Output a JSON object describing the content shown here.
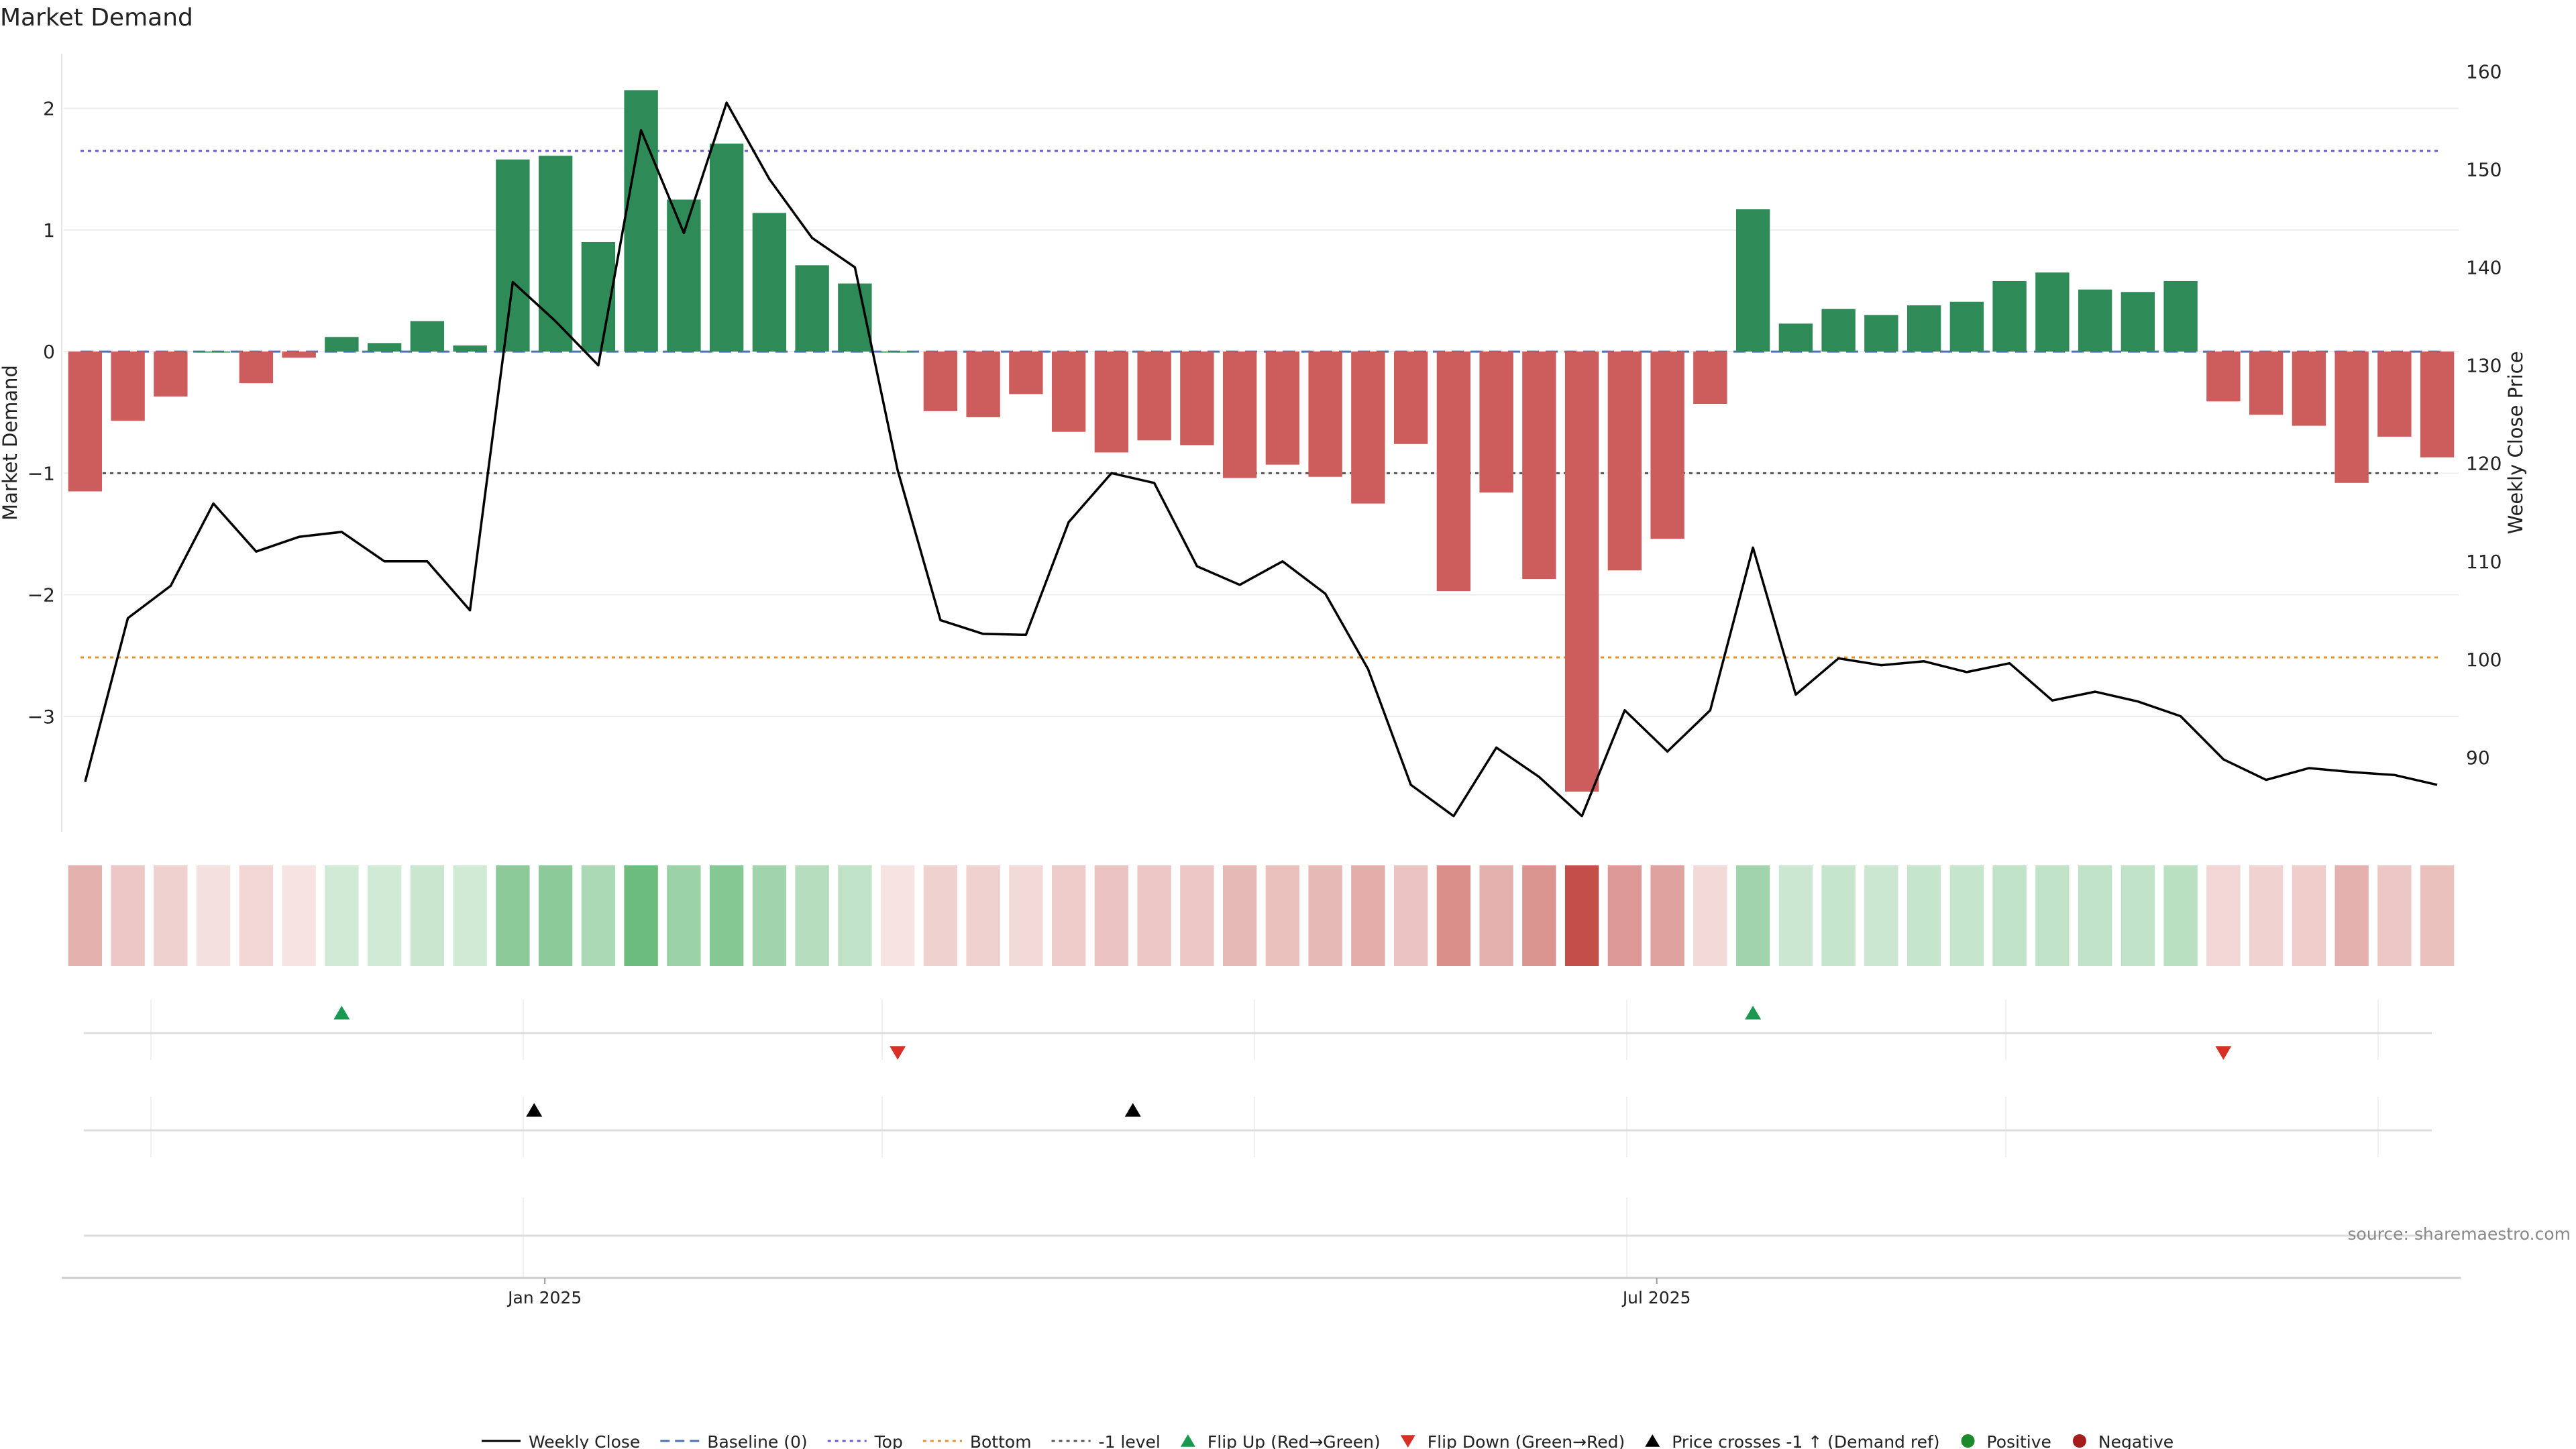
{
  "chart_data": {
    "type": "bar",
    "title": "Market Demand",
    "ylabel": "Market Demand",
    "y2label": "Weekly Close Price",
    "ylim": [
      -3.95,
      2.45
    ],
    "y2lim": [
      82.4,
      161.8
    ],
    "yticks": [
      2,
      1,
      0,
      -1,
      -2,
      -3
    ],
    "ytick_labels": [
      "2",
      "1",
      "0",
      "−1",
      "−2",
      "−3"
    ],
    "y2ticks": [
      160,
      150,
      140,
      130,
      120,
      110,
      100,
      90
    ],
    "xtick_labels": [
      {
        "label": "Jan 2025",
        "week": 10.75
      },
      {
        "label": "Jul 2025",
        "week": 36.75
      }
    ],
    "source": "source: sharemaestro.com",
    "reference_lines": [
      {
        "name": "Baseline (0)",
        "axis": "left",
        "value": 0,
        "color": "#4c72b0",
        "style": "dashed"
      },
      {
        "name": "Top",
        "axis": "left",
        "value": 1.65,
        "color": "#6a5acd",
        "style": "dotted"
      },
      {
        "name": "Bottom",
        "axis": "right",
        "value": 100.2,
        "color": "#e6902a",
        "style": "dotted"
      },
      {
        "name": "-1 level",
        "axis": "left",
        "value": -1,
        "color": "#555555",
        "style": "dotted"
      }
    ],
    "colors": {
      "positive": "#2e8b57",
      "negative": "#cd5c5c",
      "price": "#000000",
      "flip_up": "#1a9850",
      "flip_down": "#d73027",
      "cross": "#000000"
    },
    "demand": [
      -1.15,
      -0.57,
      -0.37,
      0.0,
      -0.26,
      -0.05,
      0.12,
      0.07,
      0.25,
      0.05,
      1.58,
      1.61,
      0.9,
      2.15,
      1.25,
      1.71,
      1.14,
      0.71,
      0.56,
      0.0,
      -0.49,
      -0.54,
      -0.35,
      -0.66,
      -0.83,
      -0.73,
      -0.77,
      -1.04,
      -0.93,
      -1.03,
      -1.25,
      -0.76,
      -1.97,
      -1.16,
      -1.87,
      -3.62,
      -1.8,
      -1.54,
      -0.43,
      1.17,
      0.23,
      0.35,
      0.3,
      0.38,
      0.41,
      0.58,
      0.65,
      0.51,
      0.49,
      0.58,
      -0.41,
      -0.52,
      -0.61,
      -1.08,
      -0.7,
      -0.87
    ],
    "close": [
      87.5,
      104.2,
      107.5,
      115.9,
      111.0,
      112.5,
      113.0,
      110.0,
      110.0,
      105.0,
      138.5,
      134.5,
      130.0,
      154.0,
      143.5,
      156.8,
      149.0,
      143.0,
      140.0,
      119.3,
      104.0,
      102.6,
      102.5,
      114.0,
      119.0,
      118.0,
      109.5,
      107.6,
      110.0,
      106.7,
      99.0,
      87.2,
      84.0,
      91.0,
      88.0,
      84.0,
      94.8,
      90.6,
      94.8,
      111.4,
      96.4,
      100.1,
      99.4,
      99.8,
      98.7,
      99.6,
      95.8,
      96.7,
      95.7,
      94.2,
      89.8,
      87.7,
      88.9,
      88.5,
      88.2,
      87.2
    ],
    "heatmap_intensity": [
      0.42,
      0.3,
      0.25,
      0.17,
      0.22,
      0.15,
      0.22,
      0.22,
      0.26,
      0.22,
      0.55,
      0.55,
      0.4,
      0.7,
      0.48,
      0.58,
      0.45,
      0.35,
      0.3,
      0.15,
      0.25,
      0.25,
      0.2,
      0.28,
      0.32,
      0.3,
      0.3,
      0.38,
      0.34,
      0.38,
      0.44,
      0.32,
      0.6,
      0.42,
      0.58,
      0.95,
      0.55,
      0.5,
      0.2,
      0.45,
      0.25,
      0.27,
      0.25,
      0.27,
      0.27,
      0.3,
      0.3,
      0.3,
      0.3,
      0.33,
      0.22,
      0.24,
      0.27,
      0.42,
      0.3,
      0.34
    ],
    "flip_up_weeks": [
      6,
      39
    ],
    "flip_down_weeks": [
      19,
      50
    ],
    "cross_up_weeks": [
      10.5,
      24.5
    ],
    "legend": [
      {
        "label": "Weekly Close",
        "kind": "solid-line",
        "color": "#000000"
      },
      {
        "label": "Baseline (0)",
        "kind": "dashed-line",
        "color": "#4c72b0"
      },
      {
        "label": "Top",
        "kind": "dotted-line",
        "color": "#6a5acd"
      },
      {
        "label": "Bottom",
        "kind": "dotted-line",
        "color": "#e6902a"
      },
      {
        "label": "-1 level",
        "kind": "dotted-line",
        "color": "#555555"
      },
      {
        "label": "Flip Up (Red→Green)",
        "kind": "triangle-up",
        "color": "#1a9850"
      },
      {
        "label": "Flip Down (Green→Red)",
        "kind": "triangle-down",
        "color": "#d73027"
      },
      {
        "label": "Price crosses -1 ↑ (Demand ref)",
        "kind": "triangle-up",
        "color": "#000000"
      },
      {
        "label": "Positive",
        "kind": "circle",
        "color": "#1a8a2a"
      },
      {
        "label": "Negative",
        "kind": "circle",
        "color": "#a51c1c"
      }
    ]
  }
}
